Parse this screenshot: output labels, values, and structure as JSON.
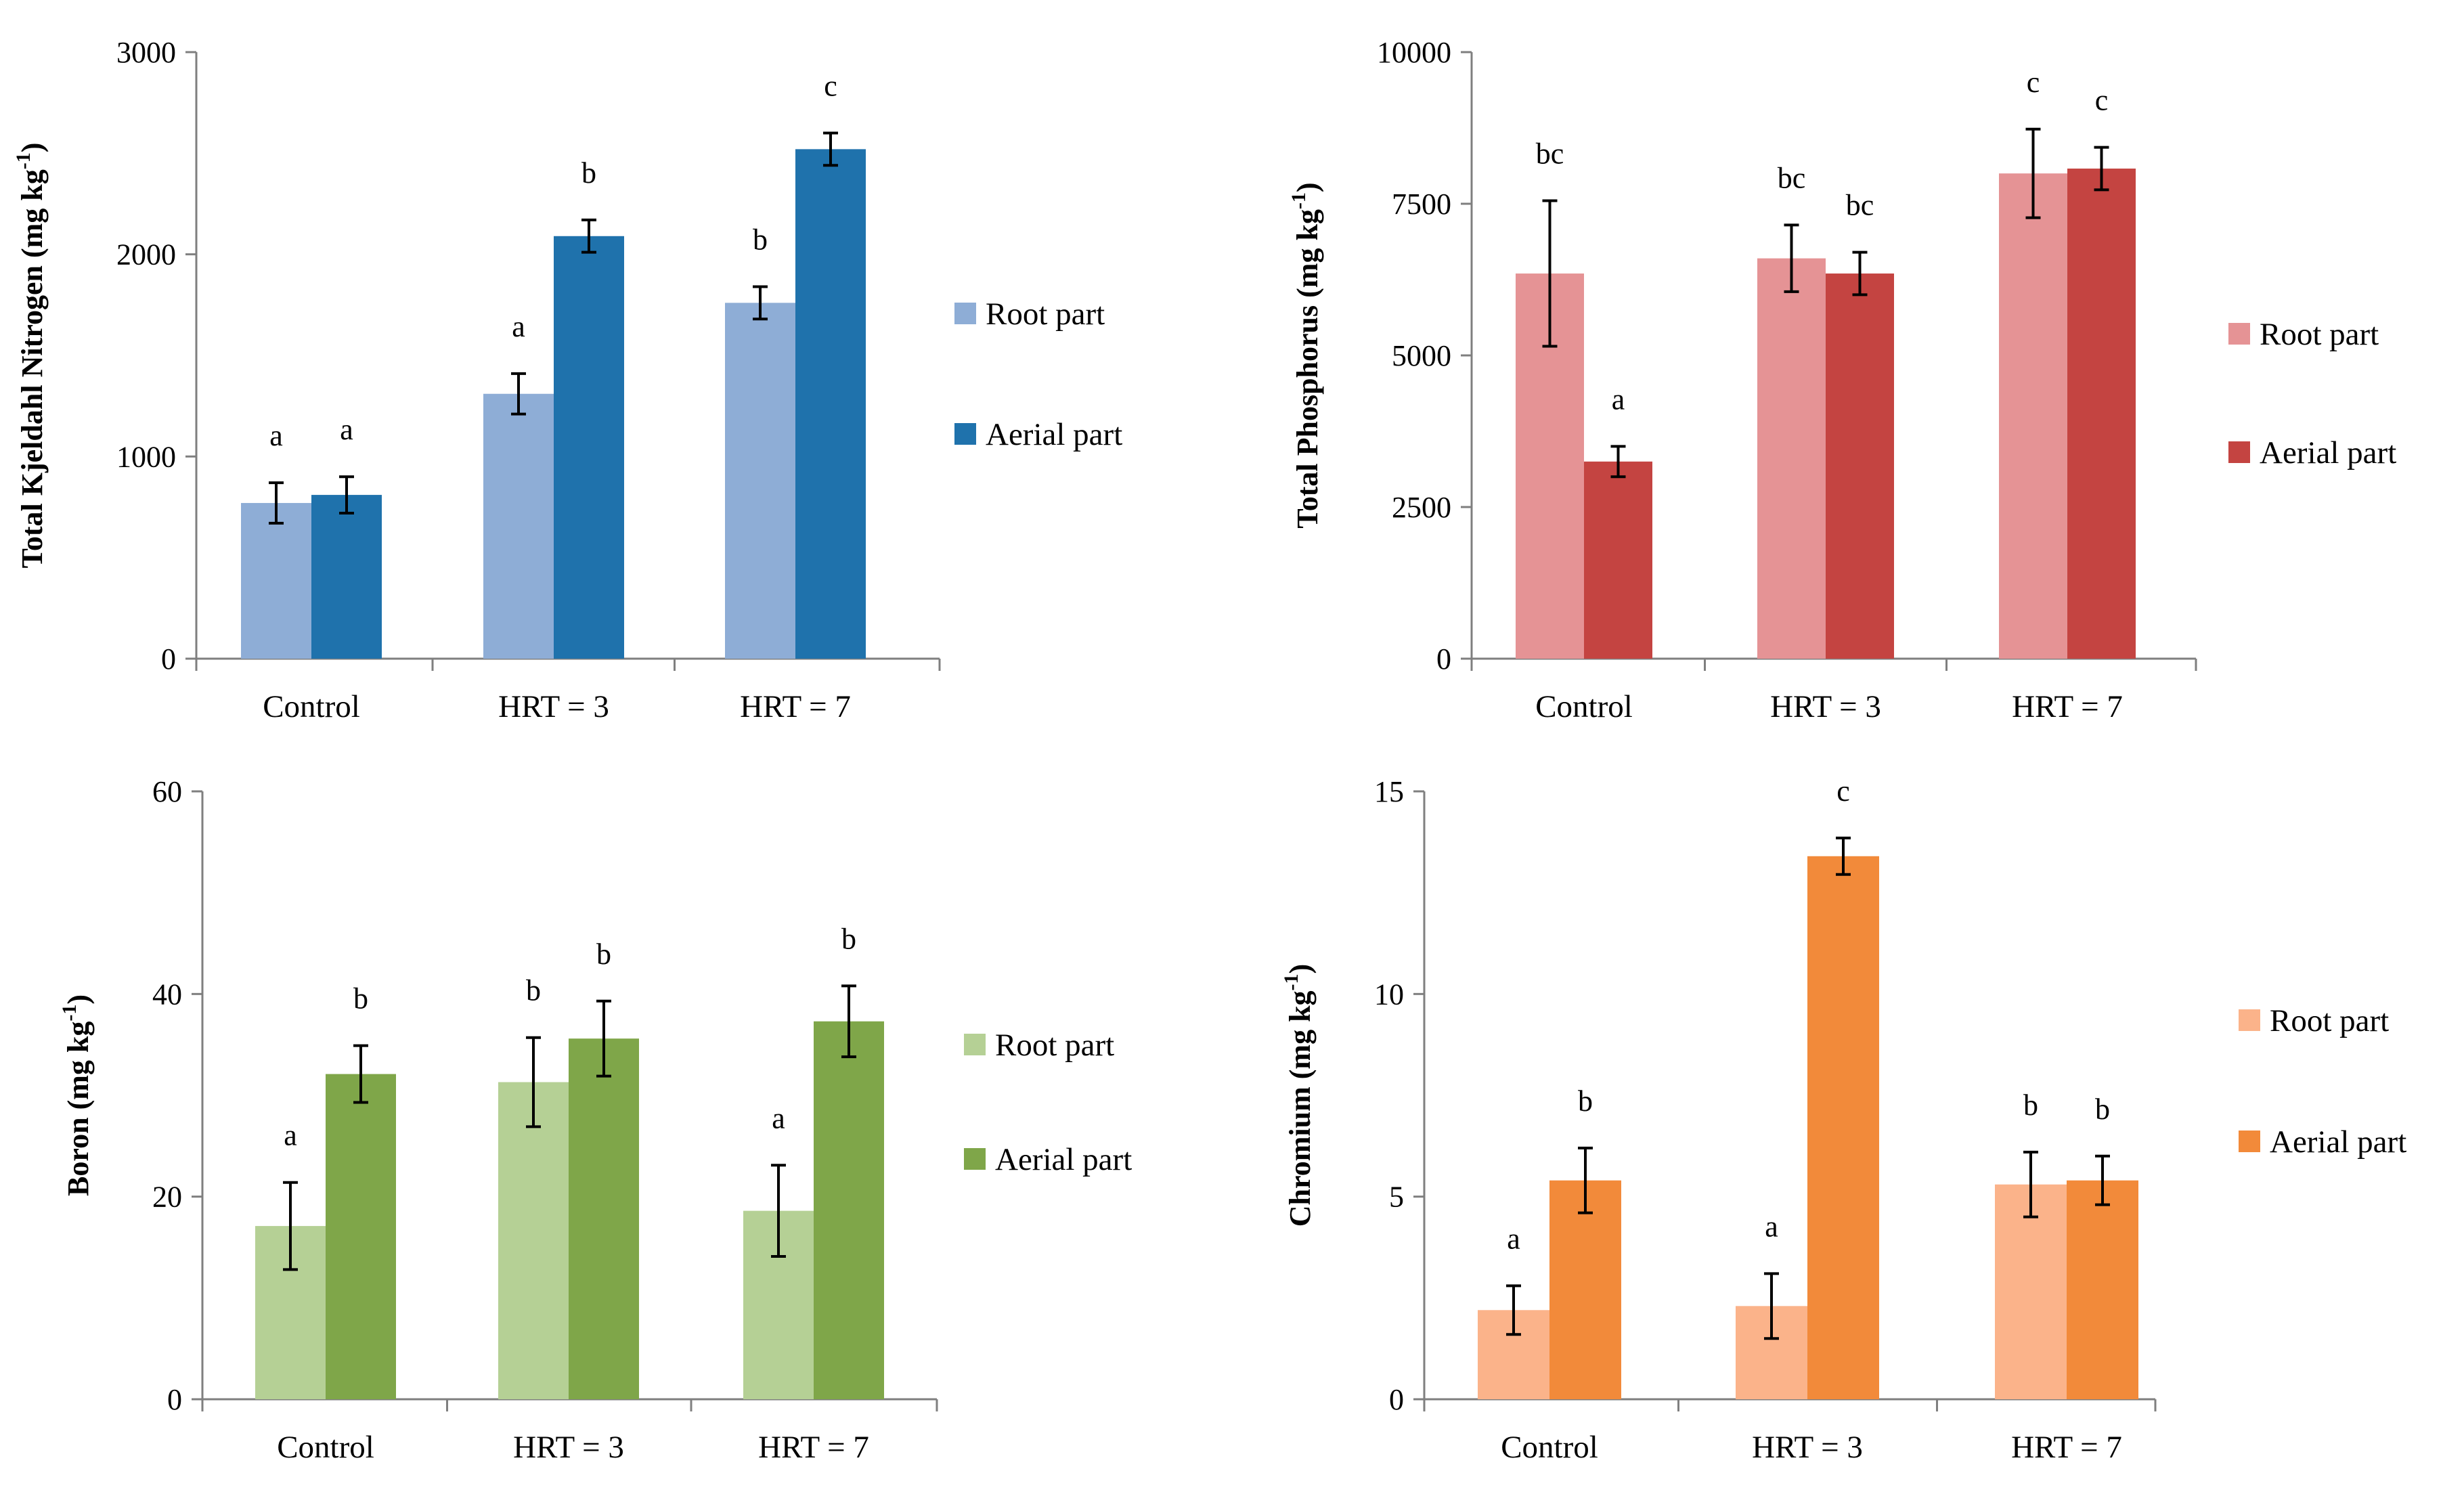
{
  "chart_data": [
    {
      "type": "bar",
      "categories": [
        "Control",
        "HRT = 3",
        "HRT = 7"
      ],
      "ylabel": "Total Kjeldahl  Nitrogen (mg kg",
      "ylabel_sup": "-1",
      "ylabel_end": ")",
      "ylim": [
        0,
        3000
      ],
      "yticks": [
        0,
        1000,
        2000,
        3000
      ],
      "ytick_labels": [
        "0",
        "1000",
        "2000",
        "3000"
      ],
      "series": [
        {
          "name": "Root part",
          "color": "#8EADD6",
          "values": [
            770,
            1310,
            1760
          ],
          "errors": [
            100,
            100,
            80
          ],
          "labels": [
            "a",
            "a",
            "b"
          ]
        },
        {
          "name": "Aerial part",
          "color": "#1F72AC",
          "values": [
            810,
            2090,
            2520
          ],
          "errors": [
            90,
            80,
            80
          ],
          "labels": [
            "a",
            "b",
            "c"
          ]
        }
      ]
    },
    {
      "type": "bar",
      "categories": [
        "Control",
        "HRT = 3",
        "HRT = 7"
      ],
      "ylabel": "Total Phosphorus (mg kg",
      "ylabel_sup": "-1",
      "ylabel_end": ")",
      "ylim": [
        0,
        10000
      ],
      "yticks": [
        0,
        2500,
        5000,
        7500,
        10000
      ],
      "ytick_labels": [
        "0",
        "2500",
        "5000",
        "7500",
        "10000"
      ],
      "series": [
        {
          "name": "Root part",
          "color": "#E59395",
          "values": [
            6350,
            6600,
            8000
          ],
          "errors": [
            1200,
            550,
            730
          ],
          "labels": [
            "bc",
            "bc",
            "c"
          ]
        },
        {
          "name": "Aerial part",
          "color": "#C44441",
          "values": [
            3250,
            6350,
            8080
          ],
          "errors": [
            250,
            350,
            350
          ],
          "labels": [
            "a",
            "bc",
            "c"
          ]
        }
      ]
    },
    {
      "type": "bar",
      "categories": [
        "Control",
        "HRT = 3",
        "HRT = 7"
      ],
      "ylabel": "Boron (mg kg",
      "ylabel_sup": "-1",
      "ylabel_end": ")",
      "ylim": [
        0,
        60
      ],
      "yticks": [
        0,
        20,
        40,
        60
      ],
      "ytick_labels": [
        "0",
        "20",
        "40",
        "60"
      ],
      "series": [
        {
          "name": "Root part",
          "color": "#B5D095",
          "values": [
            17.1,
            31.3,
            18.6
          ],
          "errors": [
            4.3,
            4.4,
            4.5
          ],
          "labels": [
            "a",
            "b",
            "a"
          ]
        },
        {
          "name": "Aerial part",
          "color": "#7FA649",
          "values": [
            32.1,
            35.6,
            37.3
          ],
          "errors": [
            2.8,
            3.7,
            3.5
          ],
          "labels": [
            "b",
            "b",
            "b"
          ]
        }
      ]
    },
    {
      "type": "bar",
      "categories": [
        "Control",
        "HRT = 3",
        "HRT = 7"
      ],
      "ylabel": "Chromium (mg kg",
      "ylabel_sup": "-1",
      "ylabel_end": ")",
      "ylim": [
        0,
        15
      ],
      "yticks": [
        0,
        5,
        10,
        15
      ],
      "ytick_labels": [
        "0",
        "5",
        "10",
        "15"
      ],
      "series": [
        {
          "name": "Root part",
          "color": "#FBB38A",
          "values": [
            2.2,
            2.3,
            5.3
          ],
          "errors": [
            0.6,
            0.8,
            0.8
          ],
          "labels": [
            "a",
            "a",
            "b"
          ]
        },
        {
          "name": "Aerial part",
          "color": "#F28A3A",
          "values": [
            5.4,
            13.4,
            5.4
          ],
          "errors": [
            0.8,
            0.45,
            0.6
          ],
          "labels": [
            "b",
            "c",
            "b"
          ]
        }
      ]
    }
  ]
}
